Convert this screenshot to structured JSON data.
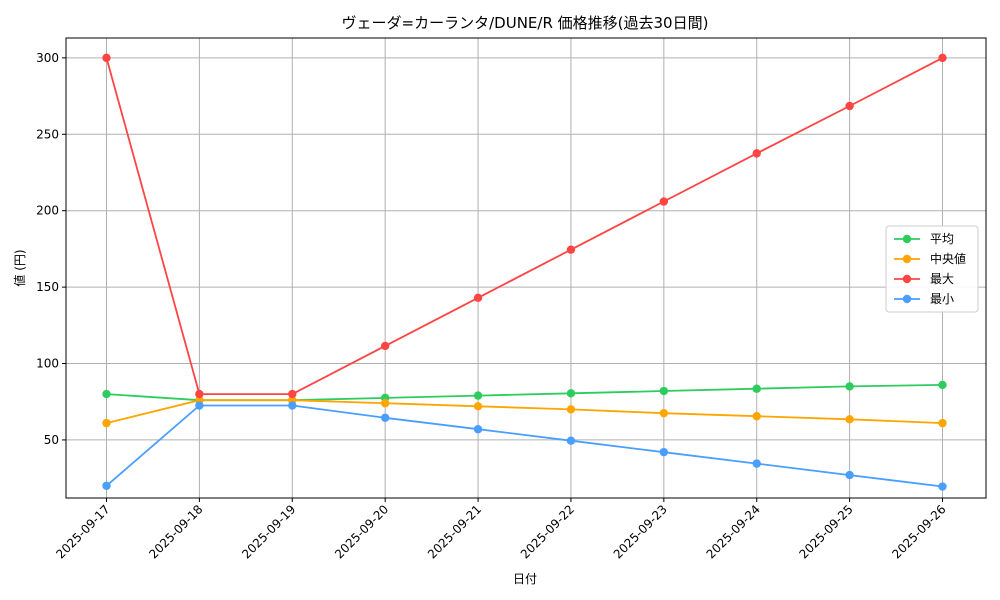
{
  "chart_data": {
    "type": "line",
    "title": "ヴェーダ=カーランタ/DUNE/R 価格推移(過去30日間)",
    "xlabel": "日付",
    "ylabel": "値 (円)",
    "x": [
      "2025-09-17",
      "2025-09-18",
      "2025-09-19",
      "2025-09-20",
      "2025-09-21",
      "2025-09-22",
      "2025-09-23",
      "2025-09-24",
      "2025-09-25",
      "2025-09-26"
    ],
    "ylim": [
      12,
      313
    ],
    "yticks": [
      50,
      100,
      150,
      200,
      250,
      300
    ],
    "grid": true,
    "legend_position": "center-right",
    "series": [
      {
        "name": "平均",
        "color": "#2ecc5f",
        "values": [
          80,
          76,
          76,
          77.5,
          79,
          80.5,
          82,
          83.5,
          85,
          86
        ]
      },
      {
        "name": "中央値",
        "color": "#ffa500",
        "values": [
          61,
          76,
          76,
          74,
          72,
          70,
          67.5,
          65.5,
          63.5,
          61
        ]
      },
      {
        "name": "最大",
        "color": "#ff4444",
        "values": [
          300,
          80,
          80,
          111.5,
          143,
          174.5,
          206,
          237.5,
          268.5,
          300
        ]
      },
      {
        "name": "最小",
        "color": "#4a9eff",
        "values": [
          20,
          72.5,
          72.5,
          64.5,
          57,
          49.5,
          42,
          34.5,
          27,
          19.5
        ]
      }
    ]
  }
}
